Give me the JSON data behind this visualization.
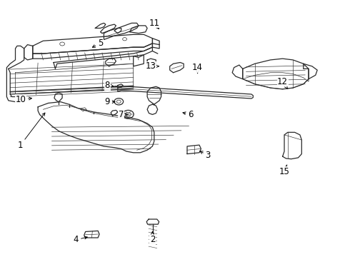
{
  "background_color": "#ffffff",
  "line_color": "#2a2a2a",
  "label_color": "#000000",
  "fig_width": 4.9,
  "fig_height": 3.6,
  "dpi": 100,
  "lw": 0.9,
  "label_fs": 8.5,
  "parts_labels": [
    [
      1,
      0.055,
      0.435,
      0.13,
      0.57
    ],
    [
      2,
      0.435,
      0.062,
      0.435,
      0.105
    ],
    [
      3,
      0.595,
      0.395,
      0.565,
      0.415
    ],
    [
      4,
      0.215,
      0.062,
      0.255,
      0.075
    ],
    [
      5,
      0.285,
      0.835,
      0.255,
      0.815
    ],
    [
      6,
      0.545,
      0.555,
      0.515,
      0.565
    ],
    [
      7,
      0.345,
      0.555,
      0.365,
      0.555
    ],
    [
      8,
      0.305,
      0.67,
      0.33,
      0.665
    ],
    [
      9,
      0.305,
      0.605,
      0.335,
      0.605
    ],
    [
      10,
      0.055,
      0.615,
      0.095,
      0.62
    ],
    [
      11,
      0.44,
      0.915,
      0.455,
      0.89
    ],
    [
      12,
      0.81,
      0.685,
      0.825,
      0.655
    ],
    [
      13,
      0.43,
      0.745,
      0.455,
      0.745
    ],
    [
      14,
      0.565,
      0.74,
      0.565,
      0.715
    ],
    [
      15,
      0.815,
      0.33,
      0.825,
      0.365
    ]
  ]
}
